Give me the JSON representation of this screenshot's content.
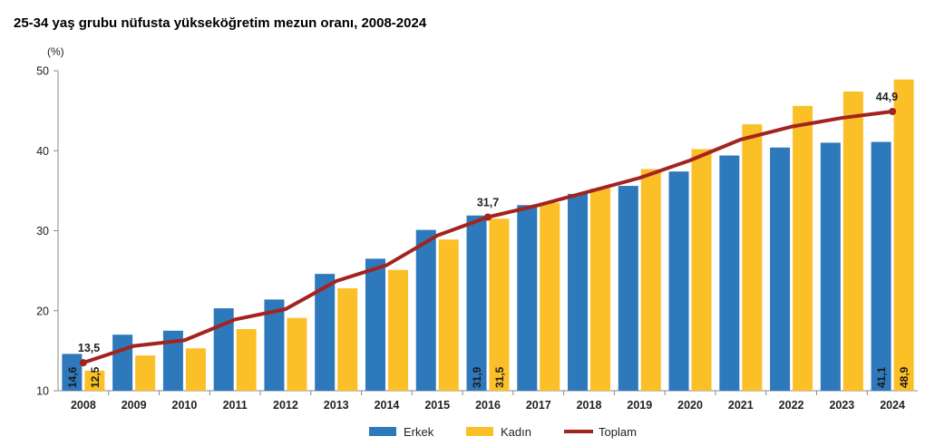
{
  "chart_data": {
    "type": "bar",
    "title": "25-34 yaş grubu nüfusta yükseköğretim mezun oranı, 2008-2024",
    "ylabel": "(%)",
    "ylim": [
      10,
      50
    ],
    "yticks": [
      10,
      20,
      30,
      40,
      50
    ],
    "grid": false,
    "legend_position": "bottom",
    "categories": [
      "2008",
      "2009",
      "2010",
      "2011",
      "2012",
      "2013",
      "2014",
      "2015",
      "2016",
      "2017",
      "2018",
      "2019",
      "2020",
      "2021",
      "2022",
      "2023",
      "2024"
    ],
    "series": [
      {
        "name": "Erkek",
        "type": "bar",
        "color": "#2e78bc",
        "values": [
          14.6,
          17.0,
          17.5,
          20.3,
          21.4,
          24.6,
          26.5,
          30.1,
          31.9,
          33.2,
          34.6,
          35.6,
          37.4,
          39.4,
          40.4,
          41.0,
          41.1
        ]
      },
      {
        "name": "Kadın",
        "type": "bar",
        "color": "#fbbf28",
        "values": [
          12.5,
          14.4,
          15.3,
          17.7,
          19.1,
          22.8,
          25.1,
          28.9,
          31.5,
          33.5,
          35.3,
          37.7,
          40.2,
          43.3,
          45.6,
          47.4,
          48.9
        ]
      },
      {
        "name": "Toplam",
        "type": "line",
        "color": "#a3231f",
        "values": [
          13.5,
          15.6,
          16.3,
          18.9,
          20.2,
          23.7,
          25.7,
          29.4,
          31.7,
          33.2,
          34.9,
          36.6,
          38.8,
          41.4,
          43.0,
          44.1,
          44.9
        ]
      }
    ],
    "point_labels": [
      {
        "series": "Toplam",
        "category": "2008",
        "text": "13,5"
      },
      {
        "series": "Toplam",
        "category": "2016",
        "text": "31,7"
      },
      {
        "series": "Toplam",
        "category": "2024",
        "text": "44,9"
      }
    ],
    "bar_labels": [
      {
        "series": "Erkek",
        "category": "2008",
        "text": "14,6"
      },
      {
        "series": "Kadın",
        "category": "2008",
        "text": "12,5"
      },
      {
        "series": "Erkek",
        "category": "2016",
        "text": "31,9"
      },
      {
        "series": "Kadın",
        "category": "2016",
        "text": "31,5"
      },
      {
        "series": "Erkek",
        "category": "2024",
        "text": "41,1"
      },
      {
        "series": "Kadın",
        "category": "2024",
        "text": "48,9"
      }
    ]
  }
}
